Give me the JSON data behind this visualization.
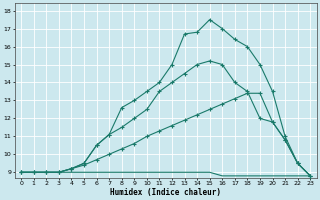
{
  "xlabel": "Humidex (Indice chaleur)",
  "bg_color": "#cce8ee",
  "line_color": "#1a7a6a",
  "grid_color": "#ffffff",
  "xlim": [
    -0.5,
    23.5
  ],
  "ylim": [
    8.7,
    18.4
  ],
  "xticks": [
    0,
    1,
    2,
    3,
    4,
    5,
    6,
    7,
    8,
    9,
    10,
    11,
    12,
    13,
    14,
    15,
    16,
    17,
    18,
    19,
    20,
    21,
    22,
    23
  ],
  "yticks": [
    9,
    10,
    11,
    12,
    13,
    14,
    15,
    16,
    17,
    18
  ],
  "line1_x": [
    0,
    1,
    2,
    3,
    4,
    5,
    6,
    7,
    8,
    9,
    10,
    11,
    12,
    13,
    14,
    15,
    16,
    17,
    18,
    19,
    20,
    21,
    22,
    23
  ],
  "line1_y": [
    9.0,
    9.0,
    9.0,
    9.0,
    9.0,
    9.0,
    9.0,
    9.0,
    9.0,
    9.0,
    9.0,
    9.0,
    9.0,
    9.0,
    9.0,
    9.0,
    8.8,
    8.8,
    8.8,
    8.8,
    8.8,
    8.8,
    8.8,
    8.8
  ],
  "line2_x": [
    0,
    1,
    2,
    3,
    4,
    5,
    6,
    7,
    8,
    9,
    10,
    11,
    12,
    13,
    14,
    15,
    16,
    17,
    18,
    19,
    20,
    21,
    22,
    23
  ],
  "line2_y": [
    9.0,
    9.0,
    9.0,
    9.0,
    9.2,
    9.4,
    9.7,
    10.0,
    10.3,
    10.6,
    11.0,
    11.3,
    11.6,
    11.9,
    12.2,
    12.5,
    12.8,
    13.1,
    13.4,
    13.4,
    11.8,
    10.8,
    9.5,
    8.8
  ],
  "line3_x": [
    0,
    1,
    2,
    3,
    4,
    5,
    6,
    7,
    8,
    9,
    10,
    11,
    12,
    13,
    14,
    15,
    16,
    17,
    18,
    19,
    20,
    21,
    22,
    23
  ],
  "line3_y": [
    9.0,
    9.0,
    9.0,
    9.0,
    9.2,
    9.5,
    10.5,
    11.1,
    11.5,
    12.0,
    12.5,
    13.5,
    14.0,
    14.5,
    15.0,
    15.2,
    15.0,
    14.0,
    13.5,
    12.0,
    11.8,
    10.8,
    9.5,
    8.8
  ],
  "line4_x": [
    0,
    1,
    2,
    3,
    4,
    5,
    6,
    7,
    8,
    9,
    10,
    11,
    12,
    13,
    14,
    15,
    16,
    17,
    18,
    19,
    20,
    21,
    22,
    23
  ],
  "line4_y": [
    9.0,
    9.0,
    9.0,
    9.0,
    9.2,
    9.5,
    10.5,
    11.1,
    12.6,
    13.0,
    13.5,
    14.0,
    15.0,
    16.7,
    16.8,
    17.5,
    17.0,
    16.4,
    16.0,
    15.0,
    13.5,
    11.0,
    9.5,
    8.8
  ]
}
